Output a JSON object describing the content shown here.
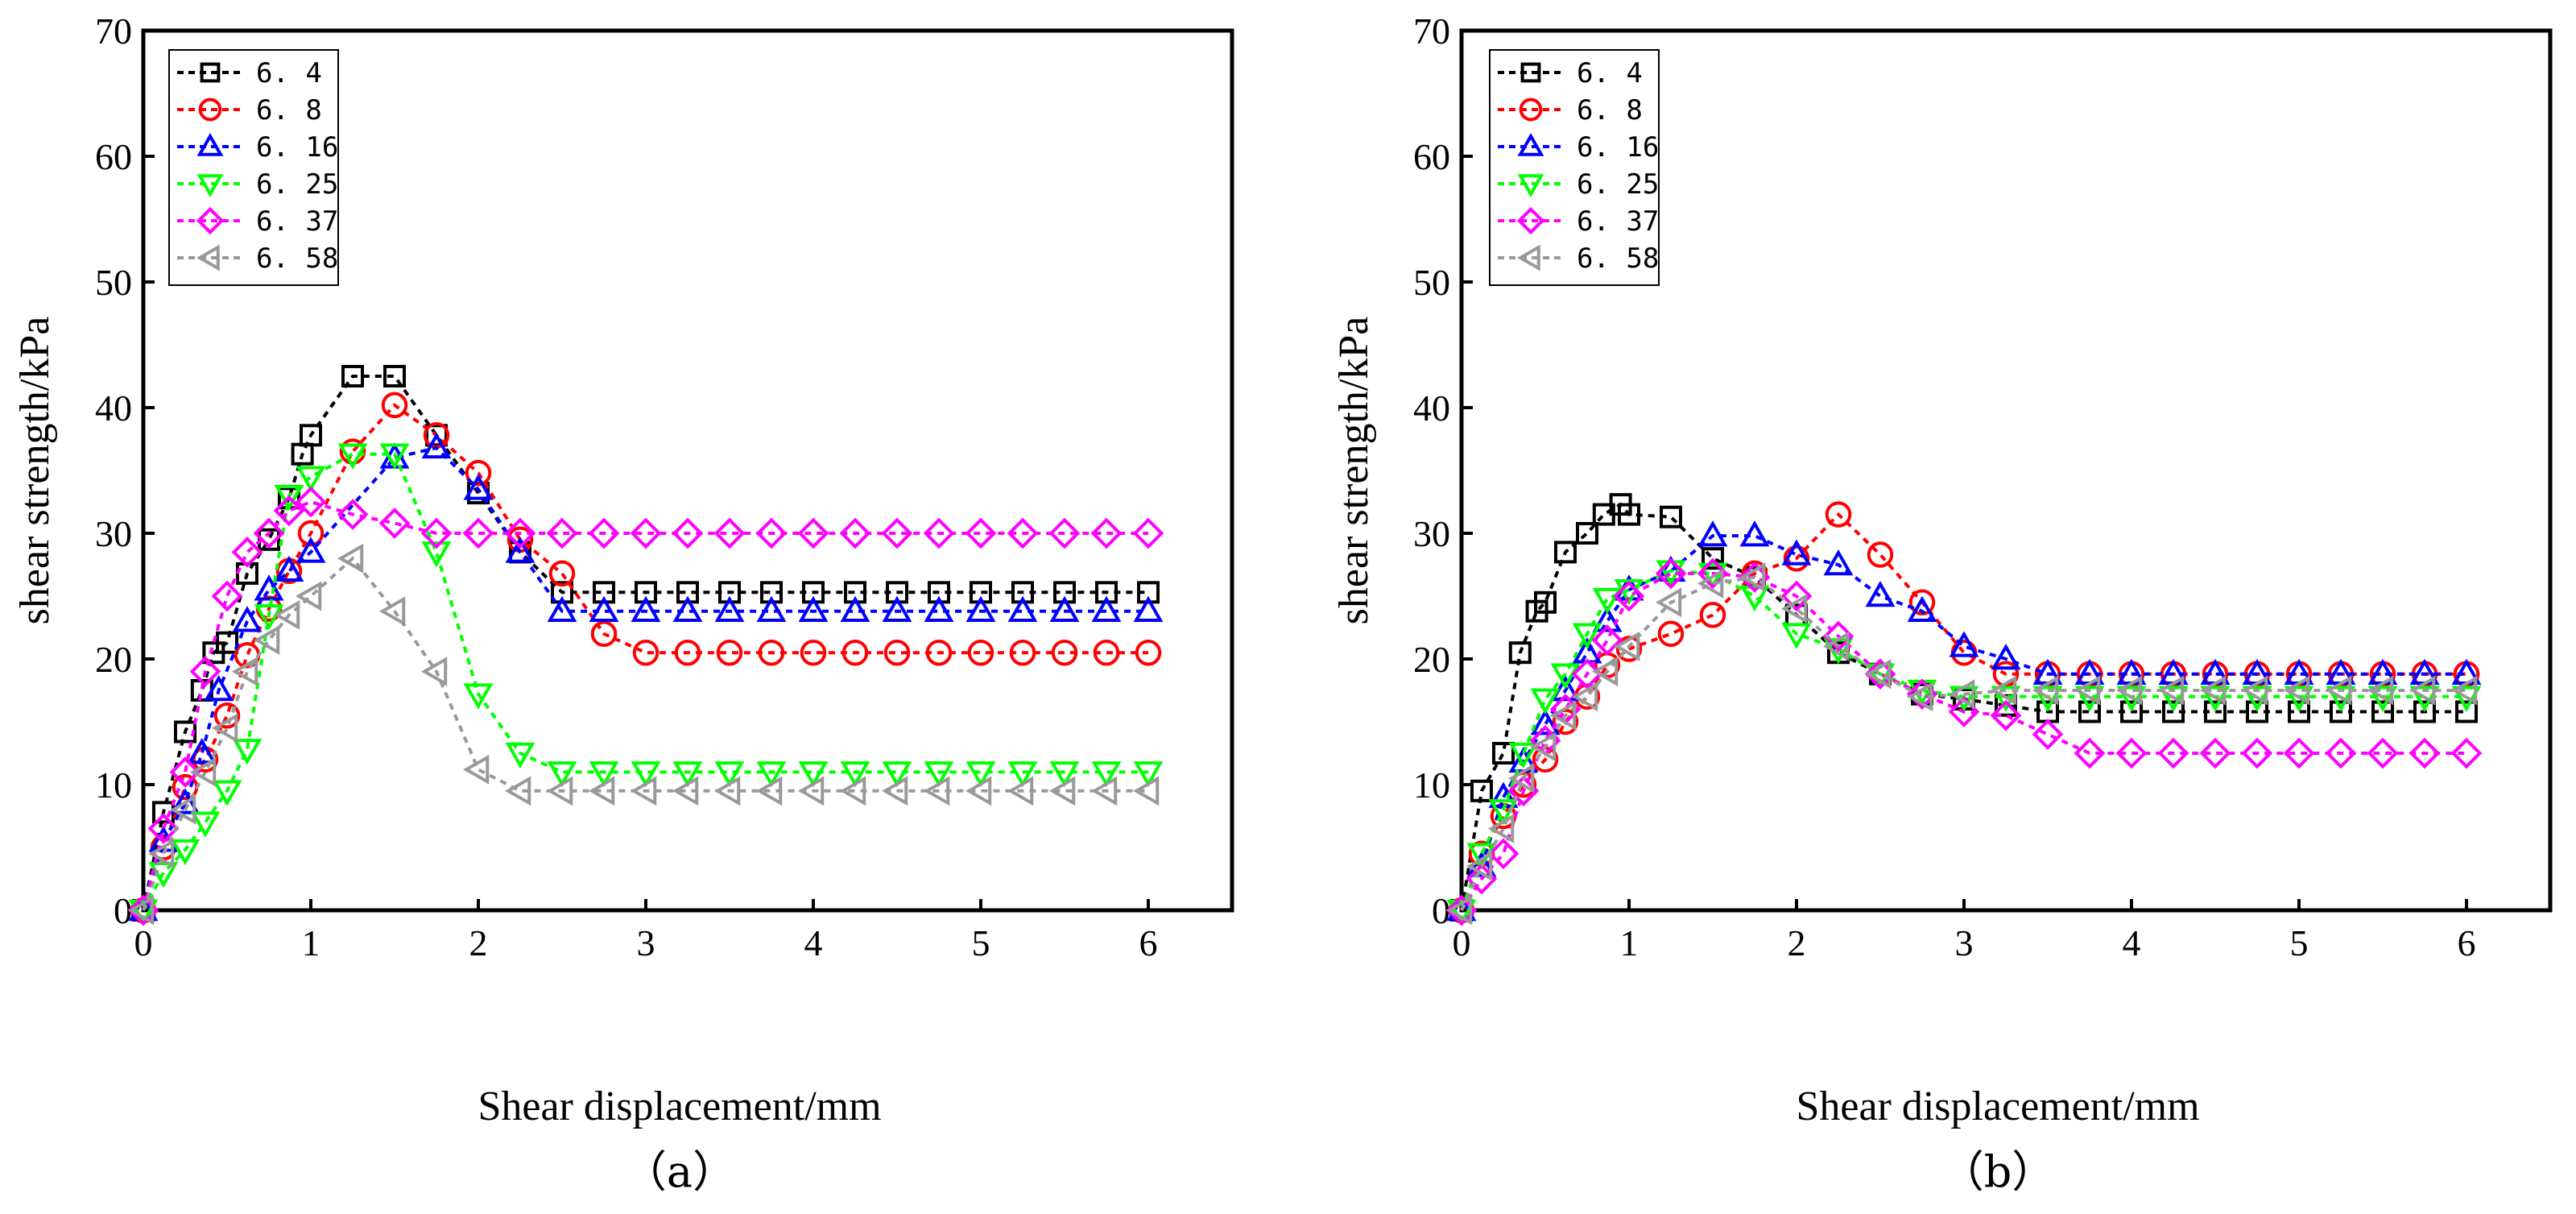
{
  "chart_data": [
    {
      "type": "line",
      "panel_label": "（a）",
      "xlabel": "Shear displacement/mm",
      "ylabel": "shear strength/kPa",
      "xlim": [
        0,
        6.5
      ],
      "ylim": [
        0,
        70
      ],
      "xticks": [
        "0",
        "1",
        "2",
        "3",
        "4",
        "5",
        "6"
      ],
      "yticks": [
        "0",
        "10",
        "20",
        "30",
        "40",
        "50",
        "60",
        "70"
      ],
      "legend_position": "top-left",
      "series": [
        {
          "name": "6.4",
          "color": "#000000",
          "marker": "square",
          "x": [
            0,
            0.12,
            0.25,
            0.35,
            0.42,
            0.5,
            0.62,
            0.75,
            0.87,
            0.95,
            1.0,
            1.25,
            1.5,
            1.75,
            2.0,
            2.25,
            2.5,
            2.75,
            3,
            3.25,
            3.5,
            3.75,
            4,
            4.25,
            4.5,
            4.75,
            5,
            5.25,
            5.5,
            5.75,
            6
          ],
          "y": [
            0,
            7.8,
            14.2,
            17.5,
            20.5,
            21.3,
            26.8,
            29.5,
            32.8,
            36.3,
            37.8,
            42.5,
            42.5,
            37.8,
            33.2,
            28.5,
            25.3,
            25.3,
            25.3,
            25.3,
            25.3,
            25.3,
            25.3,
            25.3,
            25.3,
            25.3,
            25.3,
            25.3,
            25.3,
            25.3,
            25.3
          ]
        },
        {
          "name": "6.8",
          "color": "#ff0000",
          "marker": "circle",
          "x": [
            0,
            0.12,
            0.25,
            0.37,
            0.5,
            0.62,
            0.75,
            0.87,
            1.0,
            1.25,
            1.5,
            1.75,
            2.0,
            2.25,
            2.5,
            2.75,
            3,
            3.25,
            3.5,
            3.75,
            4,
            4.25,
            4.5,
            4.75,
            5,
            5.25,
            5.5,
            5.75,
            6
          ],
          "y": [
            0,
            5.0,
            9.8,
            12.0,
            15.5,
            20.3,
            24.0,
            27.0,
            30.0,
            36.5,
            40.2,
            37.8,
            34.8,
            29.5,
            26.8,
            22.0,
            20.5,
            20.5,
            20.5,
            20.5,
            20.5,
            20.5,
            20.5,
            20.5,
            20.5,
            20.5,
            20.5,
            20.5,
            20.5
          ]
        },
        {
          "name": "6.16",
          "color": "#0000ff",
          "marker": "triangle-up",
          "x": [
            0,
            0.12,
            0.25,
            0.35,
            0.45,
            0.62,
            0.75,
            0.87,
            1.0,
            1.5,
            1.75,
            2.0,
            2.25,
            2.5,
            2.75,
            3,
            3.25,
            3.5,
            3.75,
            4,
            4.25,
            4.5,
            4.75,
            5,
            5.25,
            5.5,
            5.75,
            6
          ],
          "y": [
            0,
            5.5,
            8.5,
            12.5,
            17.5,
            23.0,
            25.5,
            27.0,
            28.5,
            36.0,
            36.8,
            33.5,
            28.5,
            23.8,
            23.8,
            23.8,
            23.8,
            23.8,
            23.8,
            23.8,
            23.8,
            23.8,
            23.8,
            23.8,
            23.8,
            23.8,
            23.8,
            23.8
          ]
        },
        {
          "name": "6.25",
          "color": "#00ff00",
          "marker": "triangle-down",
          "x": [
            0,
            0.12,
            0.25,
            0.37,
            0.5,
            0.62,
            0.75,
            0.87,
            1.0,
            1.25,
            1.5,
            1.75,
            2.0,
            2.25,
            2.5,
            2.75,
            3,
            3.25,
            3.5,
            3.75,
            4,
            4.25,
            4.5,
            4.75,
            5,
            5.25,
            5.5,
            5.75,
            6
          ],
          "y": [
            0,
            3.0,
            4.8,
            7.0,
            9.5,
            12.8,
            23.5,
            33.0,
            34.5,
            36.3,
            36.3,
            28.5,
            17.2,
            12.5,
            11.0,
            11.0,
            11.0,
            11.0,
            11.0,
            11.0,
            11.0,
            11.0,
            11.0,
            11.0,
            11.0,
            11.0,
            11.0,
            11.0,
            11.0
          ]
        },
        {
          "name": "6.37",
          "color": "#ff00ff",
          "marker": "diamond",
          "x": [
            0,
            0.12,
            0.25,
            0.37,
            0.5,
            0.62,
            0.75,
            0.87,
            1.0,
            1.25,
            1.5,
            1.75,
            2.0,
            2.25,
            2.5,
            2.75,
            3,
            3.25,
            3.5,
            3.75,
            4,
            4.25,
            4.5,
            4.75,
            5,
            5.25,
            5.5,
            5.75,
            6
          ],
          "y": [
            0,
            6.5,
            11.0,
            19.0,
            25.0,
            28.5,
            30.0,
            31.8,
            32.5,
            31.5,
            30.8,
            30.0,
            30.0,
            30.0,
            30.0,
            30.0,
            30.0,
            30.0,
            30.0,
            30.0,
            30.0,
            30.0,
            30.0,
            30.0,
            30.0,
            30.0,
            30.0,
            30.0,
            30.0
          ]
        },
        {
          "name": "6.58",
          "color": "#999999",
          "marker": "triangle-left",
          "x": [
            0,
            0.12,
            0.25,
            0.37,
            0.5,
            0.62,
            0.75,
            0.87,
            1.0,
            1.25,
            1.5,
            1.75,
            2.0,
            2.25,
            2.5,
            2.75,
            3,
            3.25,
            3.5,
            3.75,
            4,
            4.25,
            4.5,
            4.75,
            5,
            5.25,
            5.5,
            5.75,
            6
          ],
          "y": [
            0,
            4.5,
            8.0,
            11.0,
            14.5,
            19.0,
            21.5,
            23.5,
            25.0,
            28.0,
            23.8,
            19.0,
            11.2,
            9.5,
            9.5,
            9.5,
            9.5,
            9.5,
            9.5,
            9.5,
            9.5,
            9.5,
            9.5,
            9.5,
            9.5,
            9.5,
            9.5,
            9.5,
            9.5
          ]
        }
      ]
    },
    {
      "type": "line",
      "panel_label": "（b）",
      "xlabel": "Shear displacement/mm",
      "ylabel": "shear strength/kPa",
      "xlim": [
        0,
        6.5
      ],
      "ylim": [
        0,
        70
      ],
      "xticks": [
        "0",
        "1",
        "2",
        "3",
        "4",
        "5",
        "6"
      ],
      "yticks": [
        "0",
        "10",
        "20",
        "30",
        "40",
        "50",
        "60",
        "70"
      ],
      "legend_position": "top-left",
      "series": [
        {
          "name": "6.4",
          "color": "#000000",
          "marker": "square",
          "x": [
            0,
            0.12,
            0.25,
            0.35,
            0.45,
            0.5,
            0.62,
            0.75,
            0.85,
            0.95,
            1.0,
            1.25,
            1.5,
            1.75,
            2.0,
            2.25,
            2.5,
            2.75,
            3,
            3.25,
            3.5,
            3.75,
            4,
            4.25,
            4.5,
            4.75,
            5,
            5.25,
            5.5,
            5.75,
            6
          ],
          "y": [
            0,
            9.5,
            12.5,
            20.5,
            23.8,
            24.5,
            28.5,
            30.0,
            31.5,
            32.3,
            31.5,
            31.3,
            28.0,
            26.5,
            23.5,
            20.5,
            18.8,
            17.2,
            16.8,
            16.3,
            15.8,
            15.8,
            15.8,
            15.8,
            15.8,
            15.8,
            15.8,
            15.8,
            15.8,
            15.8,
            15.8
          ]
        },
        {
          "name": "6.8",
          "color": "#ff0000",
          "marker": "circle",
          "x": [
            0,
            0.12,
            0.25,
            0.37,
            0.5,
            0.62,
            0.75,
            0.87,
            1.0,
            1.25,
            1.5,
            1.75,
            2.0,
            2.25,
            2.5,
            2.75,
            3,
            3.25,
            3.5,
            3.75,
            4,
            4.25,
            4.5,
            4.75,
            5,
            5.25,
            5.5,
            5.75,
            6
          ],
          "y": [
            0,
            4.5,
            7.5,
            10.0,
            12.0,
            15.0,
            17.0,
            19.5,
            20.8,
            22.0,
            23.5,
            26.8,
            28.0,
            31.5,
            28.3,
            24.5,
            20.5,
            18.8,
            18.8,
            18.8,
            18.8,
            18.8,
            18.8,
            18.8,
            18.8,
            18.8,
            18.8,
            18.8,
            18.8
          ]
        },
        {
          "name": "6.16",
          "color": "#0000ff",
          "marker": "triangle-up",
          "x": [
            0,
            0.12,
            0.25,
            0.37,
            0.5,
            0.62,
            0.75,
            0.87,
            1.0,
            1.25,
            1.5,
            1.75,
            2.0,
            2.25,
            2.5,
            2.75,
            3,
            3.25,
            3.5,
            3.75,
            4,
            4.25,
            4.5,
            4.75,
            5,
            5.25,
            5.5,
            5.75,
            6
          ],
          "y": [
            0,
            3.5,
            9.0,
            11.8,
            14.8,
            17.5,
            20.5,
            23.0,
            25.5,
            27.0,
            29.8,
            29.8,
            28.3,
            27.5,
            25.0,
            23.8,
            21.0,
            20.0,
            18.8,
            18.8,
            18.8,
            18.8,
            18.8,
            18.8,
            18.8,
            18.8,
            18.8,
            18.8,
            18.8
          ]
        },
        {
          "name": "6.25",
          "color": "#00ff00",
          "marker": "triangle-down",
          "x": [
            0,
            0.12,
            0.25,
            0.37,
            0.5,
            0.62,
            0.75,
            0.87,
            1.0,
            1.25,
            1.5,
            1.75,
            2.0,
            2.25,
            2.5,
            2.75,
            3,
            3.25,
            3.5,
            3.75,
            4,
            4.25,
            4.5,
            4.75,
            5,
            5.25,
            5.5,
            5.75,
            6
          ],
          "y": [
            0,
            4.5,
            8.0,
            12.5,
            16.8,
            18.8,
            22.0,
            24.8,
            25.5,
            27.0,
            26.8,
            25.0,
            22.0,
            20.8,
            18.8,
            17.5,
            17.0,
            17.0,
            17.0,
            17.0,
            17.0,
            17.0,
            17.0,
            17.0,
            17.0,
            17.0,
            17.0,
            17.0,
            17.0
          ]
        },
        {
          "name": "6.37",
          "color": "#ff00ff",
          "marker": "diamond",
          "x": [
            0,
            0.12,
            0.25,
            0.37,
            0.5,
            0.62,
            0.75,
            0.87,
            1.0,
            1.25,
            1.5,
            1.75,
            2.0,
            2.25,
            2.5,
            2.75,
            3,
            3.25,
            3.5,
            3.75,
            4,
            4.25,
            4.5,
            4.75,
            5,
            5.25,
            5.5,
            5.75,
            6
          ],
          "y": [
            0,
            2.5,
            4.5,
            9.5,
            13.5,
            16.0,
            18.8,
            21.5,
            25.0,
            26.8,
            26.8,
            26.5,
            25.0,
            21.8,
            18.8,
            17.2,
            15.8,
            15.5,
            14.0,
            12.5,
            12.5,
            12.5,
            12.5,
            12.5,
            12.5,
            12.5,
            12.5,
            12.5,
            12.5
          ]
        },
        {
          "name": "6.58",
          "color": "#999999",
          "marker": "triangle-left",
          "x": [
            0,
            0.12,
            0.25,
            0.37,
            0.5,
            0.62,
            0.75,
            0.87,
            1.0,
            1.25,
            1.5,
            1.75,
            2.0,
            2.25,
            2.5,
            2.75,
            3,
            3.25,
            3.5,
            3.75,
            4,
            4.25,
            4.5,
            4.75,
            5,
            5.25,
            5.5,
            5.75,
            6
          ],
          "y": [
            0,
            3.5,
            6.5,
            10.5,
            13.0,
            15.5,
            17.0,
            19.0,
            21.0,
            24.5,
            26.0,
            26.5,
            24.0,
            21.0,
            18.8,
            17.0,
            17.2,
            17.5,
            17.5,
            17.5,
            17.5,
            17.5,
            17.5,
            17.5,
            17.5,
            17.5,
            17.5,
            17.5,
            17.5
          ]
        }
      ]
    }
  ]
}
